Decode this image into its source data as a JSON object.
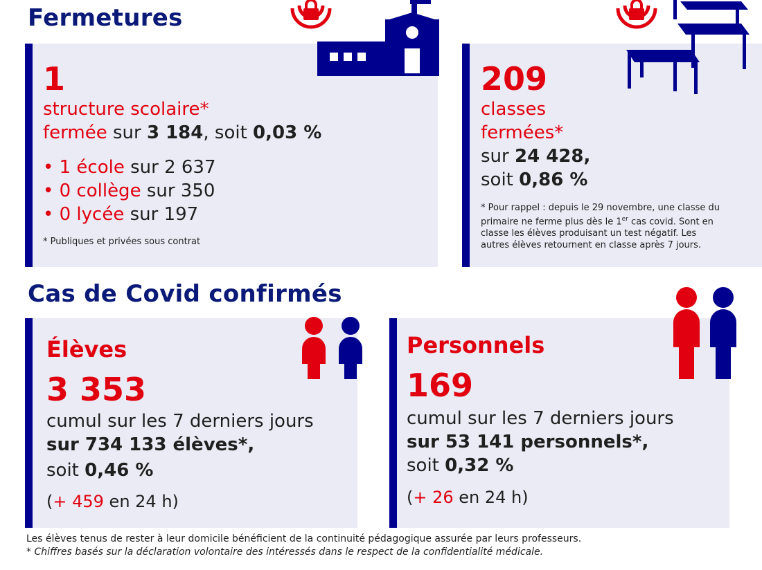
{
  "fermetures": {
    "title": "Fermetures",
    "structures": {
      "number": "1",
      "label": "structure scolaire*",
      "closed_word": "fermée",
      "on_word": "sur",
      "total": "3 184",
      "soit_word": ", soit",
      "pct": "0,03 %",
      "items": [
        {
          "bullet": "•",
          "red": "1 école",
          "rest": " sur 2 637"
        },
        {
          "bullet": "•",
          "red": "0 collège",
          "rest": " sur 350"
        },
        {
          "bullet": "•",
          "red": "0 lycée",
          "rest": " sur 197"
        }
      ],
      "note": "* Publiques et privées sous contrat"
    },
    "classes": {
      "number": "209",
      "label_1": "classes",
      "label_2": "fermées*",
      "on_word": "sur",
      "total": "24 428,",
      "soit_word": "soit",
      "pct": "0,86 %",
      "note_a": "* Pour rappel : depuis le 29 novembre, une classe du primaire ne ferme plus dès le 1",
      "note_sup": "er",
      "note_b": " cas covid. Sont en classe les élèves produisant un test négatif. Les autres élèves retournent en classe après 7 jours."
    }
  },
  "covid": {
    "title": "Cas de Covid confirmés",
    "eleves": {
      "label": "Élèves",
      "number": "3 353",
      "cumul": "cumul sur les 7 derniers jours",
      "total": "sur 734 133 élèves*,",
      "soit_word": "soit",
      "pct": "0,46 %",
      "daily_open": "(",
      "daily_value": "+ 459",
      "daily_rest": " en 24 h)"
    },
    "personnels": {
      "label": "Personnels",
      "number": "169",
      "cumul": "cumul sur les 7 derniers jours",
      "total": "sur 53 141 personnels*,",
      "soit_word": "soit",
      "pct": "0,32 %",
      "daily_open": "(",
      "daily_value": "+ 26",
      "daily_rest": " en 24 h)"
    }
  },
  "footer": {
    "line1": "Les élèves tenus de rester à leur domicile bénéficient de la continuité pédagogique assurée par leurs professeurs.",
    "line2": "* Chiffres basés sur la déclaration volontaire des intéressés dans le respect de la confidentialité médicale."
  },
  "icons": {
    "lock": "lock-icon",
    "school": "school-building-icon",
    "desks": "desks-icon",
    "people": "people-icon"
  },
  "colors": {
    "navy": "#00008f",
    "red": "#e1000f",
    "card_bg": "#ebebf5"
  }
}
